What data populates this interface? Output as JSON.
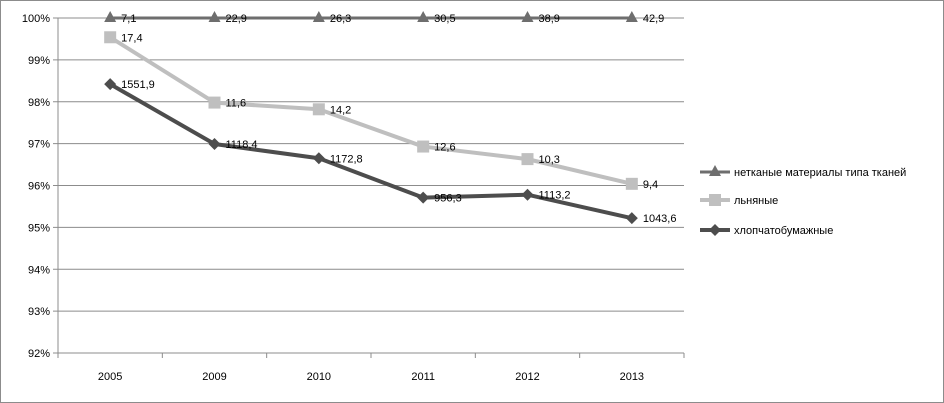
{
  "chart_data": {
    "type": "line",
    "categories": [
      "2005",
      "2009",
      "2010",
      "2011",
      "2012",
      "2013"
    ],
    "ylim": [
      0.92,
      1.0
    ],
    "yticks": [
      "92%",
      "93%",
      "94%",
      "95%",
      "96%",
      "97%",
      "98%",
      "99%",
      "100%"
    ],
    "grid": true,
    "legend_position": "right",
    "series": [
      {
        "name": "нетканые материалы типа тканей",
        "values": [
          1.0,
          1.0,
          1.0,
          1.0,
          1.0,
          1.0
        ],
        "labels": [
          "7,1",
          "22,9",
          "26,3",
          "30,5",
          "38,9",
          "42,9"
        ],
        "color": "#6e6e6e",
        "marker": "triangle"
      },
      {
        "name": "льняные",
        "values": [
          0.9954,
          0.9798,
          0.9782,
          0.9693,
          0.9663,
          0.9604
        ],
        "labels": [
          "17,4",
          "11,6",
          "14,2",
          "12,6",
          "10,3",
          "9,4"
        ],
        "color": "#bfbfbf",
        "marker": "square"
      },
      {
        "name": "хлопчатобумажные",
        "values": [
          0.9842,
          0.9699,
          0.9665,
          0.9571,
          0.9578,
          0.9522
        ],
        "labels": [
          "1551,9",
          "1118,4",
          "1172,8",
          "956,3",
          "1113,2",
          "1043,6"
        ],
        "color": "#4d4d4d",
        "marker": "diamond"
      }
    ]
  }
}
